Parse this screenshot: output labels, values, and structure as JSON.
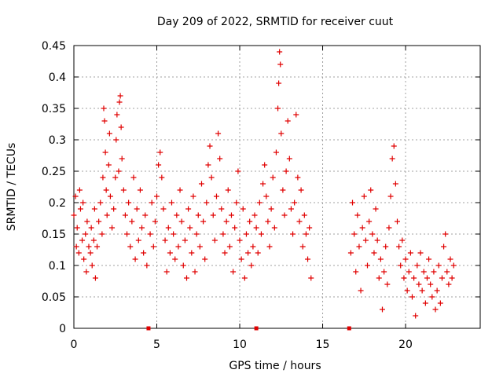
{
  "chart_data": {
    "type": "scatter",
    "title": "Day 209 of 2022, SRMTID for receiver cuut",
    "xlabel": "GPS time / hours",
    "ylabel": "SRMTID / TECUs",
    "xlim": [
      0,
      24.5
    ],
    "ylim": [
      0,
      0.45
    ],
    "xticks": [
      0,
      5,
      10,
      15,
      20
    ],
    "yticks": [
      0,
      0.05,
      0.1,
      0.15,
      0.2,
      0.25,
      0.3,
      0.35,
      0.4,
      0.45
    ],
    "ytick_labels": [
      "0",
      "0.05",
      "0.1",
      "0.15",
      "0.2",
      "0.25",
      "0.3",
      "0.35",
      "0.4",
      "0.45"
    ],
    "grid": true,
    "legend": "none",
    "marker": "+",
    "color": "#e00000",
    "zero_markers_x": [
      4.5,
      11.0,
      16.6
    ],
    "series": [
      {
        "name": "",
        "points": [
          [
            0.0,
            0.18
          ],
          [
            0.1,
            0.21
          ],
          [
            0.15,
            0.13
          ],
          [
            0.2,
            0.16
          ],
          [
            0.3,
            0.12
          ],
          [
            0.35,
            0.22
          ],
          [
            0.4,
            0.19
          ],
          [
            0.5,
            0.14
          ],
          [
            0.55,
            0.2
          ],
          [
            0.6,
            0.11
          ],
          [
            0.7,
            0.15
          ],
          [
            0.75,
            0.09
          ],
          [
            0.8,
            0.17
          ],
          [
            0.9,
            0.13
          ],
          [
            1.0,
            0.12
          ],
          [
            1.05,
            0.16
          ],
          [
            1.1,
            0.1
          ],
          [
            1.2,
            0.14
          ],
          [
            1.25,
            0.19
          ],
          [
            1.3,
            0.08
          ],
          [
            1.4,
            0.13
          ],
          [
            1.5,
            0.17
          ],
          [
            1.6,
            0.2
          ],
          [
            1.7,
            0.15
          ],
          [
            1.75,
            0.24
          ],
          [
            1.8,
            0.35
          ],
          [
            1.85,
            0.33
          ],
          [
            1.9,
            0.28
          ],
          [
            1.95,
            0.22
          ],
          [
            2.0,
            0.18
          ],
          [
            2.1,
            0.26
          ],
          [
            2.15,
            0.31
          ],
          [
            2.2,
            0.21
          ],
          [
            2.3,
            0.16
          ],
          [
            2.4,
            0.19
          ],
          [
            2.5,
            0.24
          ],
          [
            2.55,
            0.3
          ],
          [
            2.6,
            0.34
          ],
          [
            2.7,
            0.25
          ],
          [
            2.75,
            0.36
          ],
          [
            2.8,
            0.37
          ],
          [
            2.85,
            0.32
          ],
          [
            2.9,
            0.27
          ],
          [
            3.0,
            0.22
          ],
          [
            3.1,
            0.18
          ],
          [
            3.2,
            0.15
          ],
          [
            3.3,
            0.2
          ],
          [
            3.4,
            0.13
          ],
          [
            3.5,
            0.17
          ],
          [
            3.6,
            0.24
          ],
          [
            3.7,
            0.11
          ],
          [
            3.8,
            0.19
          ],
          [
            3.9,
            0.14
          ],
          [
            4.0,
            0.22
          ],
          [
            4.1,
            0.16
          ],
          [
            4.2,
            0.12
          ],
          [
            4.3,
            0.18
          ],
          [
            4.4,
            0.1
          ],
          [
            4.6,
            0.15
          ],
          [
            4.7,
            0.2
          ],
          [
            4.8,
            0.13
          ],
          [
            4.9,
            0.17
          ],
          [
            5.0,
            0.21
          ],
          [
            5.1,
            0.26
          ],
          [
            5.2,
            0.28
          ],
          [
            5.3,
            0.24
          ],
          [
            5.4,
            0.19
          ],
          [
            5.5,
            0.14
          ],
          [
            5.6,
            0.09
          ],
          [
            5.7,
            0.16
          ],
          [
            5.8,
            0.12
          ],
          [
            5.9,
            0.2
          ],
          [
            6.0,
            0.15
          ],
          [
            6.1,
            0.11
          ],
          [
            6.2,
            0.18
          ],
          [
            6.3,
            0.13
          ],
          [
            6.4,
            0.22
          ],
          [
            6.5,
            0.17
          ],
          [
            6.6,
            0.1
          ],
          [
            6.7,
            0.14
          ],
          [
            6.8,
            0.08
          ],
          [
            6.9,
            0.19
          ],
          [
            7.0,
            0.16
          ],
          [
            7.1,
            0.12
          ],
          [
            7.2,
            0.21
          ],
          [
            7.3,
            0.09
          ],
          [
            7.4,
            0.15
          ],
          [
            7.5,
            0.18
          ],
          [
            7.6,
            0.13
          ],
          [
            7.7,
            0.23
          ],
          [
            7.8,
            0.17
          ],
          [
            7.9,
            0.11
          ],
          [
            8.0,
            0.2
          ],
          [
            8.1,
            0.26
          ],
          [
            8.2,
            0.29
          ],
          [
            8.3,
            0.24
          ],
          [
            8.4,
            0.18
          ],
          [
            8.5,
            0.14
          ],
          [
            8.6,
            0.21
          ],
          [
            8.7,
            0.31
          ],
          [
            8.8,
            0.27
          ],
          [
            8.9,
            0.19
          ],
          [
            9.0,
            0.15
          ],
          [
            9.1,
            0.12
          ],
          [
            9.2,
            0.17
          ],
          [
            9.3,
            0.22
          ],
          [
            9.4,
            0.13
          ],
          [
            9.5,
            0.18
          ],
          [
            9.6,
            0.09
          ],
          [
            9.7,
            0.16
          ],
          [
            9.8,
            0.2
          ],
          [
            9.9,
            0.25
          ],
          [
            10.0,
            0.14
          ],
          [
            10.1,
            0.11
          ],
          [
            10.2,
            0.19
          ],
          [
            10.3,
            0.08
          ],
          [
            10.4,
            0.15
          ],
          [
            10.5,
            0.12
          ],
          [
            10.6,
            0.17
          ],
          [
            10.7,
            0.1
          ],
          [
            10.8,
            0.13
          ],
          [
            10.9,
            0.18
          ],
          [
            11.0,
            0.16
          ],
          [
            11.1,
            0.12
          ],
          [
            11.2,
            0.2
          ],
          [
            11.3,
            0.15
          ],
          [
            11.4,
            0.23
          ],
          [
            11.5,
            0.26
          ],
          [
            11.6,
            0.21
          ],
          [
            11.7,
            0.17
          ],
          [
            11.8,
            0.13
          ],
          [
            11.9,
            0.19
          ],
          [
            12.0,
            0.24
          ],
          [
            12.1,
            0.16
          ],
          [
            12.2,
            0.28
          ],
          [
            12.3,
            0.35
          ],
          [
            12.35,
            0.39
          ],
          [
            12.4,
            0.44
          ],
          [
            12.45,
            0.42
          ],
          [
            12.5,
            0.31
          ],
          [
            12.6,
            0.22
          ],
          [
            12.7,
            0.18
          ],
          [
            12.8,
            0.25
          ],
          [
            12.9,
            0.33
          ],
          [
            13.0,
            0.27
          ],
          [
            13.1,
            0.19
          ],
          [
            13.2,
            0.15
          ],
          [
            13.3,
            0.2
          ],
          [
            13.4,
            0.34
          ],
          [
            13.5,
            0.24
          ],
          [
            13.6,
            0.17
          ],
          [
            13.7,
            0.22
          ],
          [
            13.8,
            0.13
          ],
          [
            13.9,
            0.18
          ],
          [
            14.0,
            0.15
          ],
          [
            14.1,
            0.11
          ],
          [
            14.2,
            0.16
          ],
          [
            14.3,
            0.08
          ],
          [
            16.7,
            0.12
          ],
          [
            16.8,
            0.2
          ],
          [
            16.9,
            0.15
          ],
          [
            17.0,
            0.09
          ],
          [
            17.1,
            0.18
          ],
          [
            17.2,
            0.13
          ],
          [
            17.3,
            0.06
          ],
          [
            17.4,
            0.16
          ],
          [
            17.5,
            0.21
          ],
          [
            17.6,
            0.14
          ],
          [
            17.7,
            0.1
          ],
          [
            17.8,
            0.17
          ],
          [
            17.9,
            0.22
          ],
          [
            18.0,
            0.15
          ],
          [
            18.1,
            0.12
          ],
          [
            18.2,
            0.19
          ],
          [
            18.3,
            0.14
          ],
          [
            18.4,
            0.08
          ],
          [
            18.5,
            0.11
          ],
          [
            18.6,
            0.03
          ],
          [
            18.7,
            0.09
          ],
          [
            18.8,
            0.13
          ],
          [
            18.9,
            0.07
          ],
          [
            19.0,
            0.16
          ],
          [
            19.1,
            0.21
          ],
          [
            19.2,
            0.27
          ],
          [
            19.3,
            0.29
          ],
          [
            19.4,
            0.23
          ],
          [
            19.5,
            0.17
          ],
          [
            19.6,
            0.13
          ],
          [
            19.7,
            0.1
          ],
          [
            19.8,
            0.14
          ],
          [
            19.9,
            0.08
          ],
          [
            20.0,
            0.11
          ],
          [
            20.1,
            0.06
          ],
          [
            20.2,
            0.09
          ],
          [
            20.3,
            0.12
          ],
          [
            20.4,
            0.05
          ],
          [
            20.5,
            0.08
          ],
          [
            20.6,
            0.02
          ],
          [
            20.7,
            0.1
          ],
          [
            20.8,
            0.07
          ],
          [
            20.9,
            0.12
          ],
          [
            21.0,
            0.06
          ],
          [
            21.1,
            0.09
          ],
          [
            21.2,
            0.04
          ],
          [
            21.3,
            0.08
          ],
          [
            21.4,
            0.11
          ],
          [
            21.5,
            0.07
          ],
          [
            21.6,
            0.05
          ],
          [
            21.7,
            0.09
          ],
          [
            21.8,
            0.03
          ],
          [
            21.9,
            0.06
          ],
          [
            22.0,
            0.1
          ],
          [
            22.1,
            0.04
          ],
          [
            22.2,
            0.08
          ],
          [
            22.3,
            0.13
          ],
          [
            22.4,
            0.15
          ],
          [
            22.5,
            0.09
          ],
          [
            22.6,
            0.07
          ],
          [
            22.7,
            0.11
          ],
          [
            22.8,
            0.08
          ],
          [
            22.9,
            0.1
          ]
        ]
      }
    ]
  }
}
